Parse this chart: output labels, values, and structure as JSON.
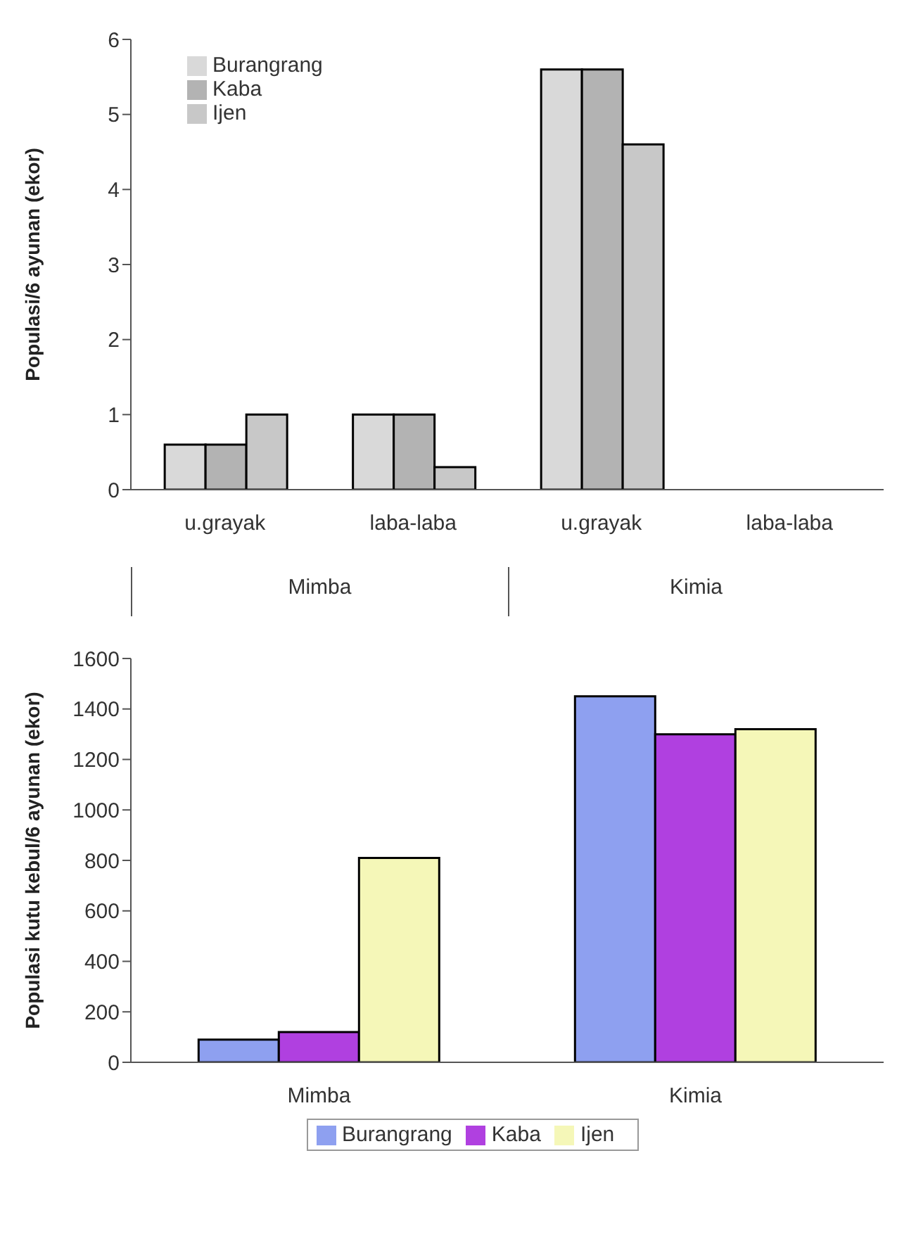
{
  "chart_data": [
    {
      "type": "bar",
      "ylabel": "Populasi/6 ayunan (ekor)",
      "categories": [
        "u.grayak",
        "laba-laba",
        "u.grayak",
        "laba-laba"
      ],
      "series": [
        {
          "name": "Burangrang",
          "color": "#d9d9d9",
          "values": [
            0.6,
            1,
            5.6,
            0
          ]
        },
        {
          "name": "Kaba",
          "color": "#b3b3b3",
          "values": [
            0.6,
            1,
            5.6,
            0
          ]
        },
        {
          "name": "Ijen",
          "color": "#c8c8c8",
          "values": [
            1,
            0.3,
            4.6,
            0
          ]
        }
      ],
      "ylim": [
        0,
        6
      ],
      "yticks": [
        0,
        1,
        2,
        3,
        4,
        5,
        6
      ],
      "grid": false,
      "legend": "top left",
      "annotations": [
        "Mimba",
        "Kimia"
      ]
    },
    {
      "type": "bar",
      "ylabel": "Populasi kutu kebul/6 ayunan (ekor)",
      "categories": [
        "Mimba",
        "Kimia"
      ],
      "series": [
        {
          "name": "Burangrang",
          "color": "#8ea0f0",
          "values": [
            90,
            1450
          ]
        },
        {
          "name": "Kaba",
          "color": "#b040e0",
          "values": [
            120,
            1300
          ]
        },
        {
          "name": "Ijen",
          "color": "#f5f7b8",
          "values": [
            810,
            1320
          ]
        }
      ],
      "ylim": [
        0,
        1600
      ],
      "yticks": [
        0,
        200,
        400,
        600,
        800,
        1000,
        1200,
        1400,
        1600
      ],
      "grid": false,
      "legend": "bottom"
    }
  ]
}
